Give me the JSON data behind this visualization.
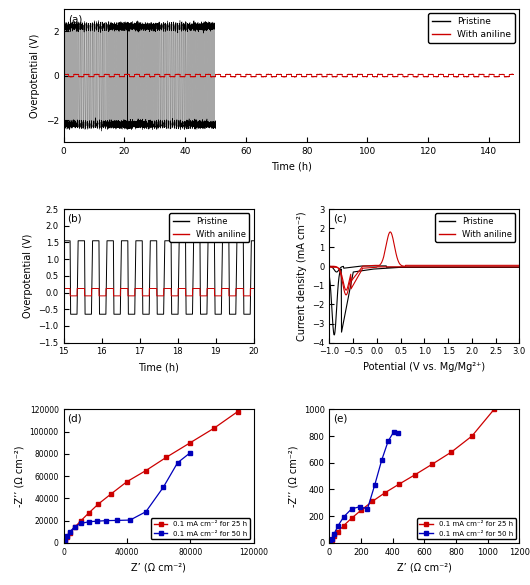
{
  "panel_a": {
    "title": "(a)",
    "xlabel": "Time (h)",
    "ylabel": "Overpotential (V)",
    "xlim": [
      0,
      150
    ],
    "ylim": [
      -3,
      3
    ],
    "xticks": [
      0,
      20,
      40,
      60,
      80,
      100,
      120,
      140
    ],
    "yticks": [
      -2,
      0,
      2
    ],
    "black_end": 50,
    "amplitude_black": 2.2,
    "amplitude_red": 0.05
  },
  "panel_b": {
    "title": "(b)",
    "xlabel": "Time (h)",
    "ylabel": "Overpotential (V)",
    "xlim": [
      15,
      20
    ],
    "ylim": [
      -1.5,
      2.5
    ],
    "xticks": [
      15,
      16,
      17,
      18,
      19,
      20
    ],
    "yticks": [
      -1.5,
      -1.0,
      -0.5,
      0.0,
      0.5,
      1.0,
      1.5,
      2.0,
      2.5
    ],
    "high_val": 1.55,
    "low_val": -0.65,
    "red_high": 0.12,
    "red_low": -0.1,
    "period": 0.38
  },
  "panel_c": {
    "title": "(c)",
    "xlabel": "Potential (V vs. Mg/Mg²⁺)",
    "ylabel": "Current density (mA cm⁻²)",
    "xlim": [
      -1.0,
      3.0
    ],
    "ylim": [
      -4,
      3
    ],
    "xticks": [
      -1.0,
      -0.5,
      0.0,
      0.5,
      1.0,
      1.5,
      2.0,
      2.5,
      3.0
    ],
    "yticks": [
      -4,
      -3,
      -2,
      -1,
      0,
      1,
      2,
      3
    ]
  },
  "panel_d": {
    "title": "(d)",
    "xlabel": "Z’ (Ω cm⁻²)",
    "ylabel": "-Z’’ (Ω cm⁻²)",
    "xlim": [
      0,
      120000
    ],
    "ylim": [
      0,
      120000
    ],
    "xticks": [
      0,
      40000,
      80000,
      120000
    ],
    "yticks": [
      0,
      20000,
      40000,
      60000,
      80000,
      100000,
      120000
    ],
    "legend_red": "0.1 mA cm⁻² for 25 h",
    "legend_blue": "0.1 mA cm⁻² for 50 h",
    "x_red": [
      200,
      800,
      2000,
      4000,
      7000,
      11000,
      16000,
      22000,
      30000,
      40000,
      52000,
      65000,
      80000,
      95000,
      110000
    ],
    "y_red": [
      500,
      2000,
      5000,
      9000,
      14000,
      20000,
      27000,
      35000,
      44000,
      55000,
      65000,
      77000,
      90000,
      103000,
      118000
    ],
    "x_blue": [
      200,
      800,
      2000,
      4000,
      7000,
      11000,
      16000,
      21000,
      27000,
      34000,
      42000,
      52000,
      63000,
      72000,
      80000
    ],
    "y_blue": [
      500,
      2500,
      6000,
      10000,
      14500,
      17500,
      19000,
      19500,
      20000,
      20200,
      20500,
      28000,
      50000,
      72000,
      81000
    ]
  },
  "panel_e": {
    "title": "(e)",
    "xlabel": "Z’ (Ω cm⁻²)",
    "ylabel": "-Z’’ (Ω cm⁻²)",
    "xlim": [
      0,
      1200
    ],
    "ylim": [
      0,
      1000
    ],
    "xticks": [
      0,
      200,
      400,
      600,
      800,
      1000,
      1200
    ],
    "yticks": [
      0,
      200,
      400,
      600,
      800,
      1000
    ],
    "legend_red": "0.1 mA cm⁻² for 25 h",
    "legend_blue": "0.1 mA cm⁻² for 50 h",
    "x_red": [
      5,
      15,
      30,
      55,
      90,
      140,
      200,
      270,
      350,
      440,
      540,
      650,
      770,
      900,
      1040
    ],
    "y_red": [
      8,
      25,
      50,
      85,
      130,
      185,
      245,
      310,
      375,
      440,
      510,
      590,
      680,
      800,
      1000
    ],
    "x_blue": [
      5,
      15,
      30,
      55,
      90,
      140,
      190,
      240,
      285,
      330,
      370,
      405,
      430
    ],
    "y_blue": [
      8,
      30,
      70,
      130,
      195,
      255,
      270,
      255,
      430,
      620,
      760,
      830,
      825
    ]
  },
  "colors": {
    "black": "#000000",
    "red": "#cc0000",
    "blue": "#0000bb"
  },
  "legend_pristine": "Pristine",
  "legend_aniline": "With aniline"
}
